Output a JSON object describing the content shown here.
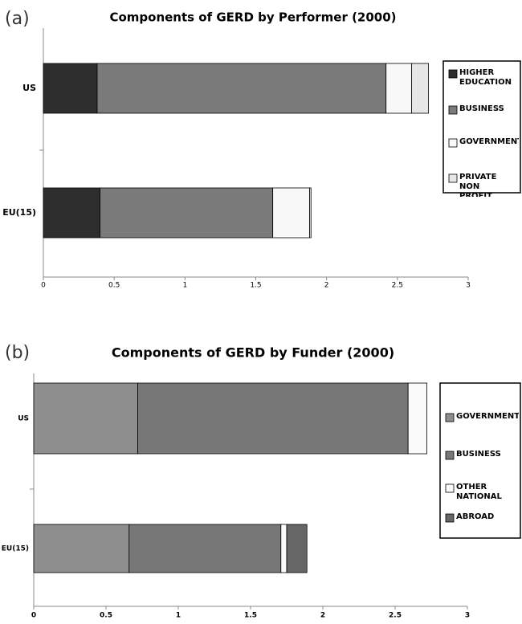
{
  "chart_data": [
    {
      "type": "stacked-bar-horizontal",
      "panel_label": "(a)",
      "title": "Components of GERD by Performer  (2000)",
      "categories": [
        "US",
        "EU(15)"
      ],
      "series": [
        {
          "name": "HIGHER EDUCATION",
          "color": "#2e2e2e",
          "values": [
            0.38,
            0.4
          ]
        },
        {
          "name": "BUSINESS",
          "color": "#7a7a7a",
          "values": [
            2.04,
            1.22
          ]
        },
        {
          "name": "GOVERNMENT",
          "color": "#f8f8f8",
          "values": [
            0.18,
            0.26
          ]
        },
        {
          "name": "PRIVATE NON PROFIT",
          "color": "#e6e6e6",
          "values": [
            0.12,
            0.01
          ]
        }
      ],
      "xlim": [
        0,
        3
      ],
      "xticks": [
        0,
        0.5,
        1,
        1.5,
        2,
        2.5,
        3
      ],
      "legend": "right"
    },
    {
      "type": "stacked-bar-horizontal",
      "panel_label": "(b)",
      "title": "Components of GERD by Funder (2000)",
      "categories": [
        "US",
        "EU(15)"
      ],
      "series": [
        {
          "name": "GOVERNMENT",
          "color": "#8e8e8e",
          "values": [
            0.72,
            0.66
          ]
        },
        {
          "name": "BUSINESS",
          "color": "#777777",
          "values": [
            1.87,
            1.05
          ]
        },
        {
          "name": "OTHER NATIONAL",
          "color": "#fafafa",
          "values": [
            0.13,
            0.04
          ]
        },
        {
          "name": "ABROAD",
          "color": "#666666",
          "values": [
            0,
            0.14
          ]
        }
      ],
      "xlim": [
        0,
        3
      ],
      "xticks": [
        0,
        0.5,
        1,
        1.5,
        2,
        2.5,
        3
      ],
      "legend": "right"
    }
  ]
}
